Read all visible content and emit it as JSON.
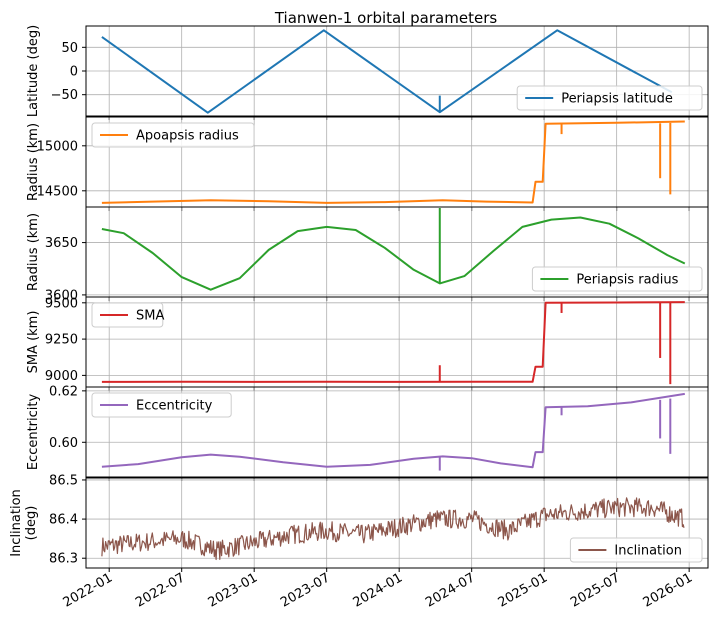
{
  "chart_data": {
    "type": "line",
    "title": "Tianwen-1 orbital parameters",
    "x_tick_labels": [
      "2022-01",
      "2022-07",
      "2023-01",
      "2023-07",
      "2024-01",
      "2024-07",
      "2025-01",
      "2025-07",
      "2026-01"
    ],
    "x_tick_dates": [
      2022.0,
      2022.5,
      2023.0,
      2023.5,
      2024.0,
      2024.5,
      2025.0,
      2025.5,
      2026.0
    ],
    "x_range": [
      2021.84,
      2026.13
    ],
    "grid": true,
    "panels": [
      {
        "ylabel": "Latitude (deg)",
        "ylim": [
          -95,
          95
        ],
        "yticks": [
          50,
          0,
          -50
        ],
        "ytick_labels": [
          "50",
          "0",
          "−50"
        ],
        "series": {
          "name": "Periapsis latitude",
          "color": "#1f77b4",
          "x": [
            2021.95,
            2022.68,
            2023.48,
            2024.28,
            2025.09,
            2025.88
          ],
          "y": [
            72,
            -88,
            86,
            -87,
            86,
            -45
          ]
        },
        "spikes": [
          {
            "x": 2024.28,
            "y0": -87,
            "y1": -52
          }
        ],
        "legend": "lower right"
      },
      {
        "ylabel": "Radius (km)",
        "ylim": [
          14320,
          15320
        ],
        "yticks": [
          15000,
          14500
        ],
        "ytick_labels": [
          "15000",
          "14500"
        ],
        "series": {
          "name": "Apoapsis radius",
          "color": "#ff7f0e",
          "x": [
            2021.95,
            2022.3,
            2022.7,
            2023.1,
            2023.5,
            2023.9,
            2024.3,
            2024.6,
            2024.92,
            2024.94,
            2024.99,
            2025.01,
            2025.5,
            2025.97
          ],
          "y": [
            14365,
            14380,
            14395,
            14385,
            14365,
            14375,
            14395,
            14380,
            14370,
            14600,
            14600,
            15245,
            15255,
            15270
          ]
        },
        "spikes": [
          {
            "x": 2025.12,
            "y0": 15240,
            "y1": 15130
          },
          {
            "x": 2025.8,
            "y0": 15250,
            "y1": 14640
          },
          {
            "x": 2025.87,
            "y0": 15255,
            "y1": 14460
          }
        ],
        "legend": "upper left"
      },
      {
        "ylabel": "Radius (km)",
        "ylim": [
          3598,
          3684
        ],
        "yticks": [
          3650,
          3600
        ],
        "ytick_labels": [
          "3650",
          "3600"
        ],
        "series": {
          "name": "Periapsis radius",
          "color": "#2ca02c",
          "x": [
            2021.95,
            2022.1,
            2022.3,
            2022.5,
            2022.7,
            2022.9,
            2023.1,
            2023.3,
            2023.5,
            2023.7,
            2023.9,
            2024.1,
            2024.28,
            2024.45,
            2024.65,
            2024.85,
            2025.05,
            2025.25,
            2025.45,
            2025.65,
            2025.85,
            2025.97
          ],
          "y": [
            3663,
            3659,
            3640,
            3617,
            3605,
            3616,
            3643,
            3661,
            3665,
            3662,
            3645,
            3624,
            3611,
            3618,
            3642,
            3665,
            3672,
            3674,
            3668,
            3654,
            3638,
            3630
          ]
        },
        "spikes": [
          {
            "x": 2024.28,
            "y0": 3611,
            "y1": 3683
          }
        ],
        "legend": "lower right"
      },
      {
        "ylabel": "SMA (km)",
        "ylim": [
          8920,
          9540
        ],
        "yticks": [
          9500,
          9250,
          9000
        ],
        "ytick_labels": [
          "9500",
          "9250",
          "9000"
        ],
        "series": {
          "name": "SMA",
          "color": "#d62728",
          "x": [
            2021.95,
            2022.5,
            2023.0,
            2023.5,
            2024.0,
            2024.5,
            2024.92,
            2024.94,
            2024.99,
            2025.01,
            2025.5,
            2025.97
          ],
          "y": [
            8955,
            8956,
            8955,
            8956,
            8955,
            8956,
            8956,
            9060,
            9060,
            9500,
            9502,
            9505
          ]
        },
        "spikes": [
          {
            "x": 2024.28,
            "y0": 8956,
            "y1": 9070
          },
          {
            "x": 2025.12,
            "y0": 9500,
            "y1": 9430
          },
          {
            "x": 2025.8,
            "y0": 9500,
            "y1": 9120
          },
          {
            "x": 2025.87,
            "y0": 9500,
            "y1": 8940
          }
        ],
        "legend": "upper left"
      },
      {
        "ylabel": "Eccentricity",
        "ylim": [
          0.5865,
          0.6215
        ],
        "yticks": [
          0.62,
          0.6
        ],
        "ytick_labels": [
          "0.62",
          "0.60"
        ],
        "series": {
          "name": "Eccentricity",
          "color": "#9467bd",
          "x": [
            2021.95,
            2022.2,
            2022.5,
            2022.7,
            2022.9,
            2023.2,
            2023.5,
            2023.8,
            2024.1,
            2024.3,
            2024.5,
            2024.7,
            2024.92,
            2024.94,
            2024.99,
            2025.01,
            2025.3,
            2025.6,
            2025.97
          ],
          "y": [
            0.5905,
            0.5915,
            0.5942,
            0.5952,
            0.5944,
            0.5922,
            0.5905,
            0.5912,
            0.5936,
            0.5945,
            0.5938,
            0.5918,
            0.5903,
            0.5962,
            0.5962,
            0.6136,
            0.614,
            0.6155,
            0.6188
          ]
        },
        "spikes": [
          {
            "x": 2024.28,
            "y0": 0.5945,
            "y1": 0.589
          },
          {
            "x": 2025.12,
            "y0": 0.6138,
            "y1": 0.6105
          },
          {
            "x": 2025.8,
            "y0": 0.6165,
            "y1": 0.6015
          },
          {
            "x": 2025.87,
            "y0": 0.617,
            "y1": 0.5955
          }
        ],
        "legend": "upper left"
      },
      {
        "ylabel": "Inclination\n(deg)",
        "ylim": [
          86.275,
          86.505
        ],
        "yticks": [
          86.5,
          86.4,
          86.3
        ],
        "ytick_labels": [
          "86.5",
          "86.4",
          "86.3"
        ],
        "series": {
          "name": "Inclination",
          "color": "#8c564b",
          "x": [
            2021.95,
            2022.2,
            2022.5,
            2022.75,
            2023.0,
            2023.25,
            2023.5,
            2023.75,
            2024.0,
            2024.25,
            2024.5,
            2024.75,
            2025.0,
            2025.25,
            2025.5,
            2025.75,
            2025.97
          ],
          "y": [
            86.33,
            86.34,
            86.35,
            86.32,
            86.34,
            86.36,
            86.37,
            86.36,
            86.38,
            86.4,
            86.4,
            86.37,
            86.41,
            86.42,
            86.43,
            86.43,
            86.4
          ],
          "noise_amplitude": 0.025
        },
        "legend": "lower right"
      }
    ]
  }
}
